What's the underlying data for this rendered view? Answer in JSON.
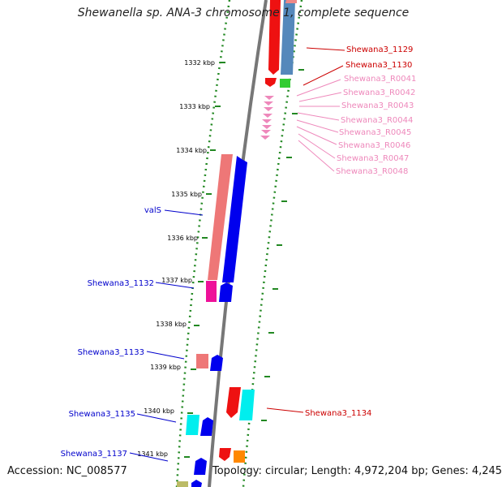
{
  "title": "Shewanella sp. ANA-3 chromosome 1, complete sequence",
  "accession": "Accession: NC_008577",
  "topology": "Topology: circular; Length: 4,972,204 bp; Genes: 4,245",
  "kbp_ticks": [
    "1332 kbp",
    "1333 kbp",
    "1334 kbp",
    "1335 kbp",
    "1336 kbp",
    "1337 kbp",
    "1338 kbp",
    "1339 kbp",
    "1340 kbp",
    "1341 kbp"
  ],
  "labels": {
    "shewana3_1129": "Shewana3_1129",
    "shewana3_1130": "Shewana3_1130",
    "shewana3_r0041": "Shewana3_R0041",
    "shewana3_r0042": "Shewana3_R0042",
    "shewana3_r0043": "Shewana3_R0043",
    "shewana3_r0044": "Shewana3_R0044",
    "shewana3_r0045": "Shewana3_R0045",
    "shewana3_r0046": "Shewana3_R0046",
    "shewana3_r0047": "Shewana3_R0047",
    "shewana3_r0048": "Shewana3_R0048",
    "vals": "valS",
    "shewana3_1132": "Shewana3_1132",
    "shewana3_1133": "Shewana3_1133",
    "shewana3_1134": "Shewana3_1134",
    "shewana3_1135": "Shewana3_1135",
    "shewana3_1137": "Shewana3_1137"
  },
  "colors": {
    "label_blue": "#0000cc",
    "label_red": "#cc0000",
    "label_pink": "#ee88bb",
    "tick_green": "#228822",
    "backbone": "#777777"
  }
}
